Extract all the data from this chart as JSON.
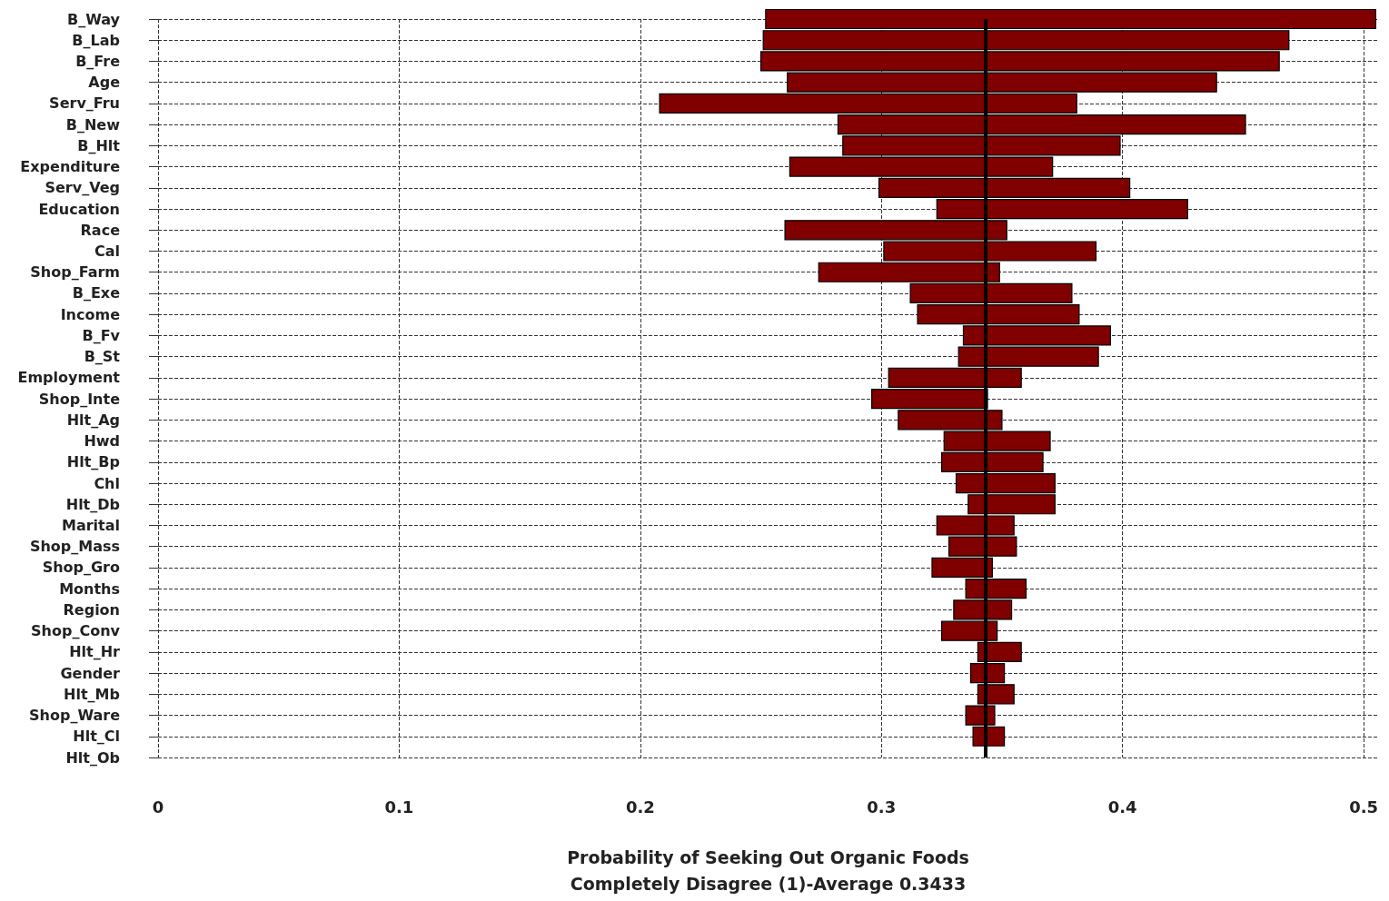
{
  "chart_data": {
    "type": "bar",
    "orientation": "horizontal",
    "xlabel": "Probability of Seeking Out Organic Foods\nCompletely Disagree (1)-Average 0.3433",
    "categories": [
      "B_Way",
      "B_Lab",
      "B_Fre",
      "Age",
      "Serv_Fru",
      "B_New",
      "B_Hlt",
      "Expenditure",
      "Serv_Veg",
      "Education",
      "Race",
      "Cal",
      "Shop_Farm",
      "B_Exe",
      "Income",
      "B_Fv",
      "B_St",
      "Employment",
      "Shop_Inte",
      "Hlt_Ag",
      "Hwd",
      "Hlt_Bp",
      "Chl",
      "Hlt_Db",
      "Marital",
      "Shop_Mass",
      "Shop_Gro",
      "Months",
      "Region",
      "Shop_Conv",
      "Hlt_Hr",
      "Gender",
      "Hlt_Mb",
      "Shop_Ware",
      "Hlt_Cl",
      "Hlt_Ob"
    ],
    "base": [
      0.252,
      0.251,
      0.25,
      0.261,
      0.208,
      0.282,
      0.284,
      0.262,
      0.299,
      0.323,
      0.26,
      0.301,
      0.274,
      0.312,
      0.315,
      0.334,
      0.332,
      0.303,
      0.296,
      0.307,
      0.326,
      0.325,
      0.331,
      0.336,
      0.323,
      0.328,
      0.321,
      0.335,
      0.33,
      0.325,
      0.34,
      0.337,
      0.34,
      0.335,
      0.338,
      null
    ],
    "values": [
      0.253,
      0.218,
      0.215,
      0.178,
      0.173,
      0.169,
      0.115,
      0.109,
      0.104,
      0.104,
      0.092,
      0.088,
      0.075,
      0.067,
      0.067,
      0.061,
      0.058,
      0.055,
      0.048,
      0.043,
      0.044,
      0.042,
      0.041,
      0.036,
      0.032,
      0.028,
      0.025,
      0.025,
      0.024,
      0.023,
      0.018,
      0.014,
      0.015,
      0.012,
      0.013,
      null
    ],
    "color": "#800000",
    "xlim": [
      0,
      0.506
    ],
    "xticks": [
      0,
      0.1,
      0.2,
      0.3,
      0.4,
      0.5
    ],
    "ref_lines": [
      {
        "axis": "x",
        "value": 0.3433,
        "color": "#000000"
      }
    ],
    "grid": true,
    "line_style": "dashed"
  }
}
